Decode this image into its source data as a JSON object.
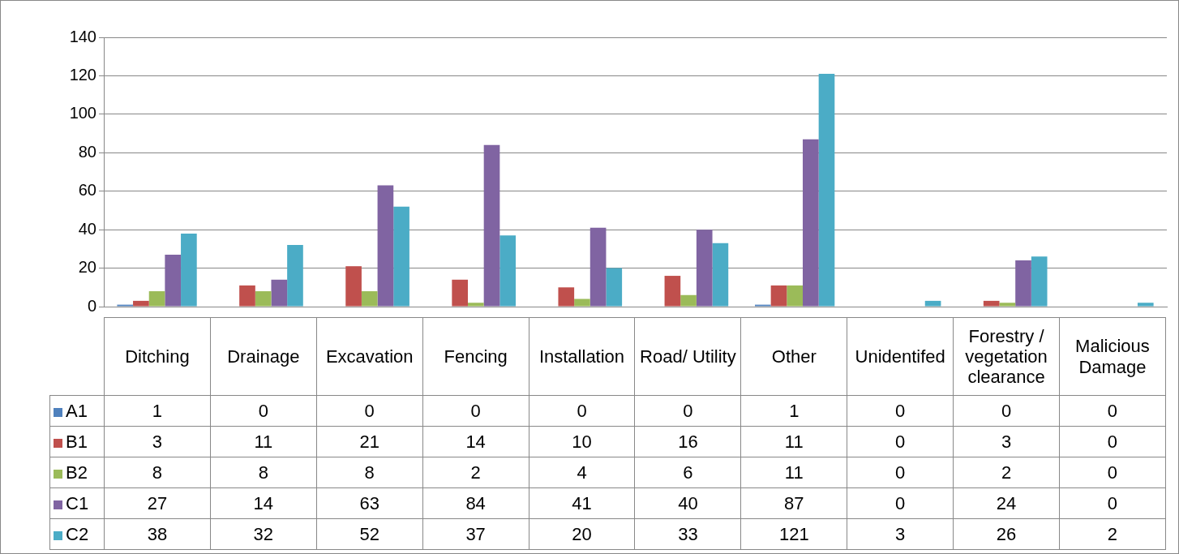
{
  "chart_data": {
    "type": "bar",
    "categories": [
      "Ditching",
      "Drainage",
      "Excavation",
      "Fencing",
      "Installation",
      "Road/ Utility",
      "Other",
      "Unidentifed",
      "Forestry / vegetation clearance",
      "Malicious Damage"
    ],
    "series": [
      {
        "name": "A1",
        "color": "#4f81bd",
        "values": [
          1,
          0,
          0,
          0,
          0,
          0,
          1,
          0,
          0,
          0
        ]
      },
      {
        "name": "B1",
        "color": "#c0504d",
        "values": [
          3,
          11,
          21,
          14,
          10,
          16,
          11,
          0,
          3,
          0
        ]
      },
      {
        "name": "B2",
        "color": "#9bbb59",
        "values": [
          8,
          8,
          8,
          2,
          4,
          6,
          11,
          0,
          2,
          0
        ]
      },
      {
        "name": "C1",
        "color": "#8064a2",
        "values": [
          27,
          14,
          63,
          84,
          41,
          40,
          87,
          0,
          24,
          0
        ]
      },
      {
        "name": "C2",
        "color": "#4bacc6",
        "values": [
          38,
          32,
          52,
          37,
          20,
          33,
          121,
          3,
          26,
          2
        ]
      }
    ],
    "ylim": [
      0,
      140
    ],
    "yticks": [
      0,
      20,
      40,
      60,
      80,
      100,
      120,
      140
    ],
    "grid": "y",
    "legend": "bottom",
    "data_labels": true
  }
}
